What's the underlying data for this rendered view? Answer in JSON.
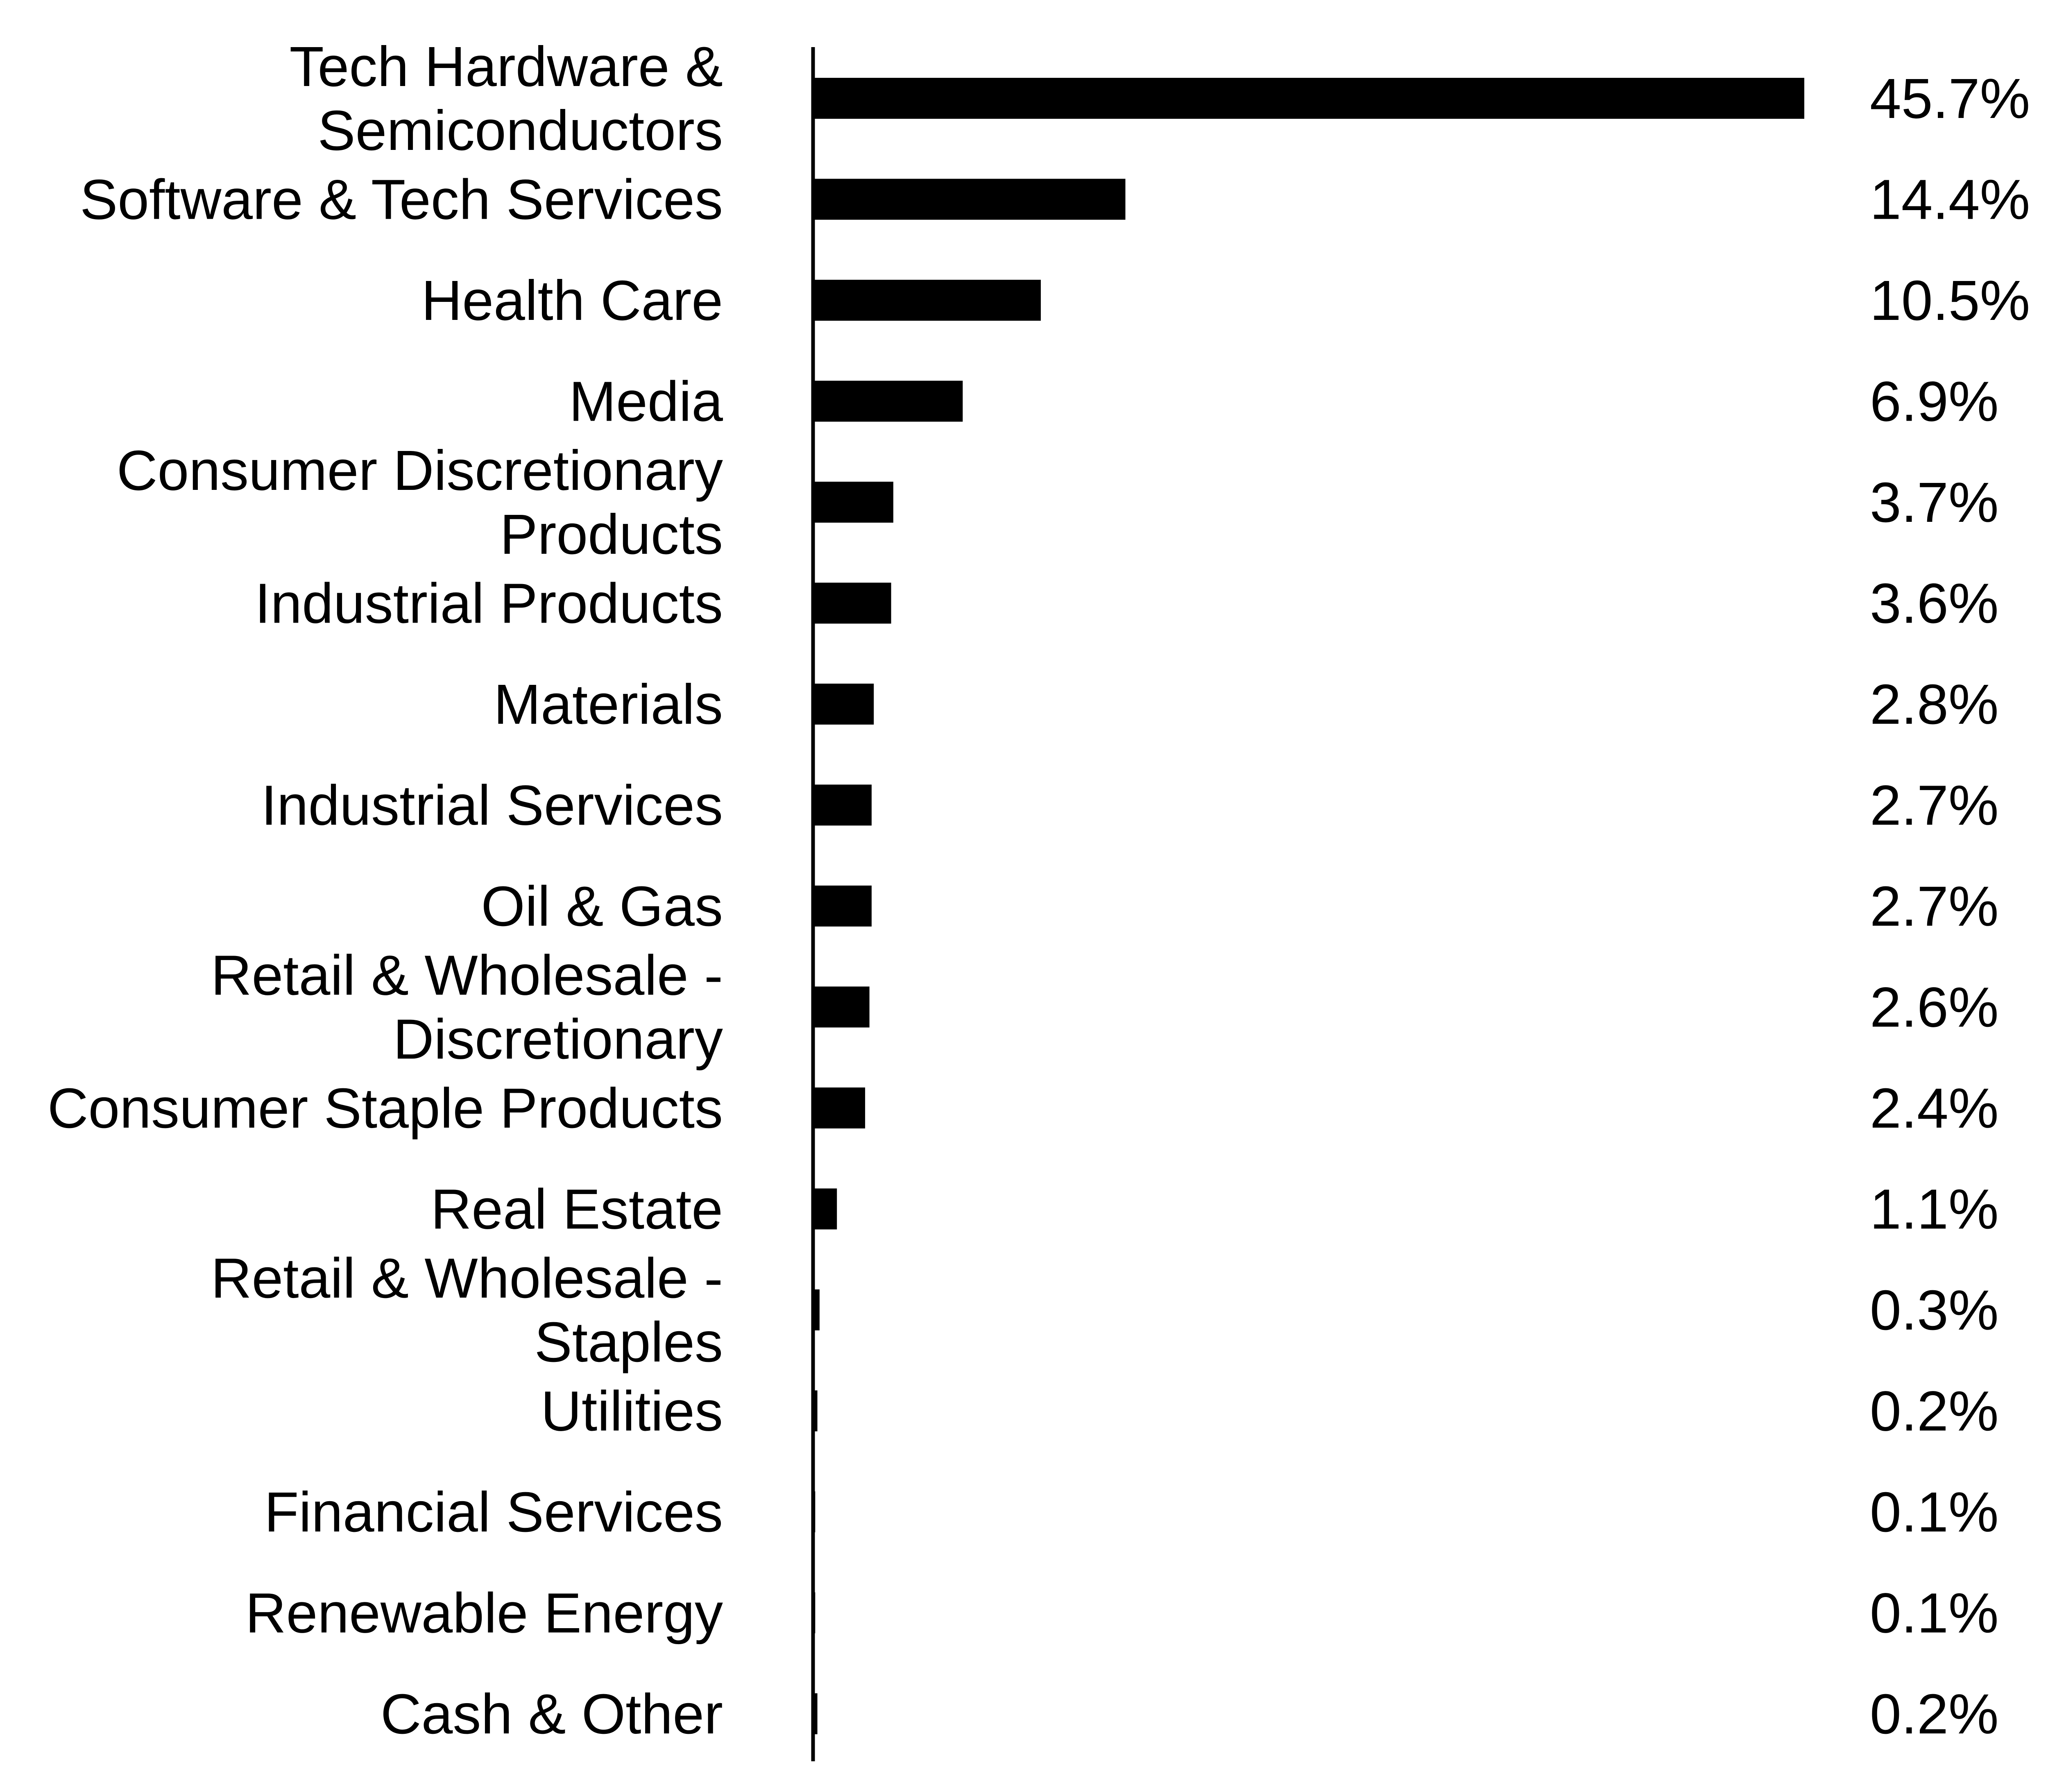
{
  "chart_data": {
    "type": "bar",
    "orientation": "horizontal",
    "categories": [
      [
        "Tech Hardware &",
        "Semiconductors"
      ],
      [
        "Software & Tech Services"
      ],
      [
        "Health Care"
      ],
      [
        "Media"
      ],
      [
        "Consumer Discretionary",
        "Products"
      ],
      [
        "Industrial Products"
      ],
      [
        "Materials"
      ],
      [
        "Industrial Services"
      ],
      [
        "Oil & Gas"
      ],
      [
        "Retail & Wholesale -",
        "Discretionary"
      ],
      [
        "Consumer Staple Products"
      ],
      [
        "Real Estate"
      ],
      [
        "Retail & Wholesale -",
        "Staples"
      ],
      [
        "Utilities"
      ],
      [
        "Financial Services"
      ],
      [
        "Renewable Energy"
      ],
      [
        "Cash & Other"
      ]
    ],
    "values": [
      45.7,
      14.4,
      10.5,
      6.9,
      3.7,
      3.6,
      2.8,
      2.7,
      2.7,
      2.6,
      2.4,
      1.1,
      0.3,
      0.2,
      0.1,
      0.1,
      0.2
    ],
    "value_labels": [
      "45.7%",
      "14.4%",
      "10.5%",
      "6.9%",
      "3.7%",
      "3.6%",
      "2.8%",
      "2.7%",
      "2.7%",
      "2.6%",
      "2.4%",
      "1.1%",
      "0.3%",
      "0.2%",
      "0.1%",
      "0.1%",
      "0.2%"
    ],
    "title": "",
    "xlabel": "",
    "ylabel": "",
    "grid": false,
    "legend": "none",
    "colors": {
      "bar": "#000000",
      "axis": "#000000",
      "text": "#000000",
      "background": "#ffffff"
    }
  }
}
